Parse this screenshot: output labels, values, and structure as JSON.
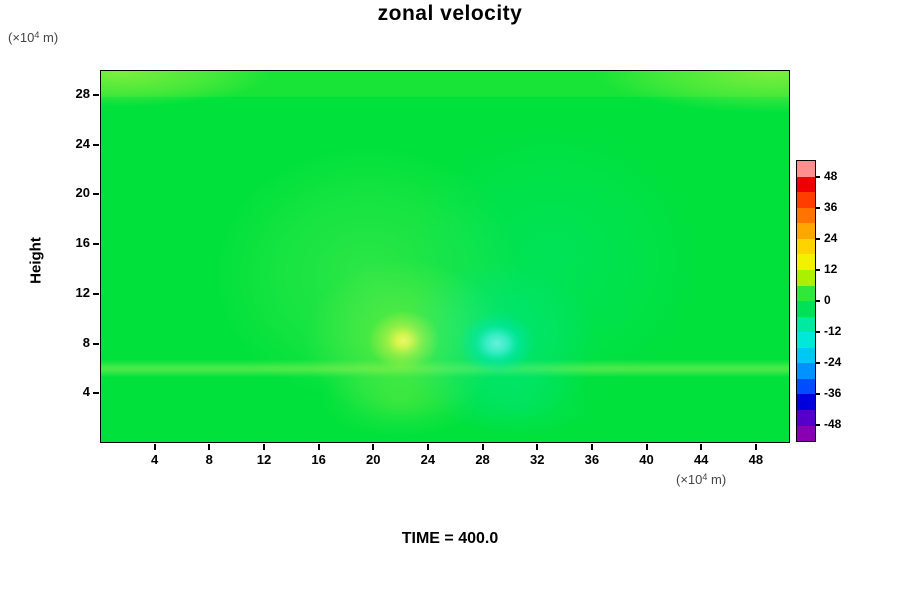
{
  "figure": {
    "background_color": "#FFFFFF"
  },
  "chart_data": {
    "type": "heatmap",
    "title": "zonal velocity",
    "time_label": "TIME = 400.0",
    "y_axis_title": "Height",
    "axis_unit": {
      "prefix": "(×10",
      "exp": "4",
      "suffix": " m)"
    },
    "x_ticks": [
      4,
      8,
      12,
      16,
      20,
      24,
      28,
      32,
      36,
      40,
      44,
      48
    ],
    "y_ticks": [
      4,
      8,
      12,
      16,
      20,
      24,
      28
    ],
    "x_range": [
      0,
      50.5
    ],
    "y_range": [
      0,
      30
    ],
    "grid": false,
    "background_fill": "#00E13C",
    "field": {
      "background_value": 0,
      "positive_max": {
        "x": 22,
        "y": 8,
        "value": 12
      },
      "negative_min": {
        "x": 29,
        "y": 8,
        "value": -12
      },
      "grid_x": [
        0,
        5,
        10,
        15,
        20,
        25,
        30,
        35,
        40,
        45,
        50
      ],
      "grid_y": [
        0,
        5,
        8,
        12,
        16,
        20,
        25,
        30
      ],
      "values": [
        [
          0,
          0,
          0,
          0,
          0,
          0,
          0,
          0,
          0,
          0,
          0
        ],
        [
          1,
          1,
          1,
          2,
          3,
          0,
          -3,
          -2,
          -1,
          0,
          0
        ],
        [
          0,
          0,
          1,
          3,
          10,
          -1,
          -11,
          -3,
          -1,
          0,
          0
        ],
        [
          0,
          0,
          1,
          3,
          6,
          -1,
          -6,
          -3,
          -1,
          0,
          0
        ],
        [
          0,
          0,
          1,
          2,
          3,
          -1,
          -3,
          -3,
          -1,
          0,
          0
        ],
        [
          0,
          0,
          1,
          2,
          2,
          0,
          -2,
          -2,
          -1,
          0,
          0
        ],
        [
          1,
          1,
          1,
          1,
          1,
          1,
          1,
          1,
          1,
          1,
          1
        ],
        [
          4,
          2,
          1,
          1,
          1,
          1,
          1,
          1,
          2,
          3,
          4
        ]
      ]
    },
    "colorbar": {
      "tick_labels": [
        "48",
        "36",
        "24",
        "12",
        "0",
        "-12",
        "-24",
        "-36",
        "-48"
      ],
      "levels": [
        -54,
        -48,
        -42,
        -36,
        -30,
        -24,
        -18,
        -12,
        -6,
        0,
        6,
        12,
        18,
        24,
        30,
        36,
        42,
        48,
        54
      ],
      "colors_top_to_bottom": [
        "#FF8F8F",
        "#EF0000",
        "#FF3D00",
        "#FF7300",
        "#FFA600",
        "#FFD300",
        "#F2F200",
        "#AAF000",
        "#2FE83A",
        "#00E156",
        "#00E9A0",
        "#00E8D8",
        "#00C8F5",
        "#0092FF",
        "#004CFF",
        "#0000DD",
        "#5400C8",
        "#8A00B0"
      ]
    }
  }
}
